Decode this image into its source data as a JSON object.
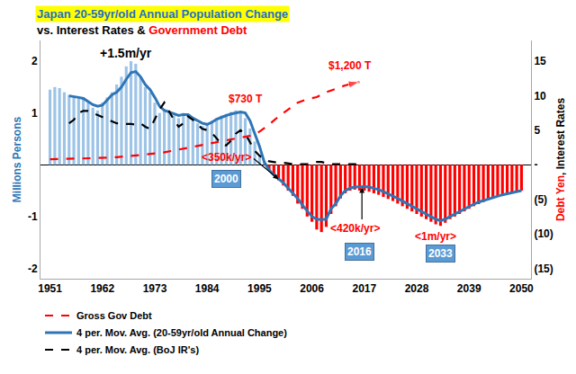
{
  "chart_data": {
    "type": "bar",
    "title": "Japan 20-59yr/old Annual Population Change",
    "subtitle": [
      {
        "text": "vs. Interest Rates & ",
        "color": "#000000"
      },
      {
        "text": "Government Debt",
        "color": "#ff0000"
      }
    ],
    "ylabel": "Millions Persons",
    "y2label": [
      {
        "text": "Debt Yen",
        "color": "#ff0000"
      },
      {
        "text": ", Interest Rates",
        "color": "#000000"
      }
    ],
    "xlim": [
      1949,
      2052
    ],
    "xticks": [
      1951,
      1962,
      1973,
      1984,
      1995,
      2006,
      2017,
      2028,
      2039,
      2050
    ],
    "ylim": [
      -2.2,
      2.4
    ],
    "yticks": [
      -2,
      -1,
      1,
      2
    ],
    "y2lim": [
      -16.5,
      18
    ],
    "y2ticks": [
      {
        "value": -15,
        "label": "(15)"
      },
      {
        "value": -10,
        "label": "(10)"
      },
      {
        "value": -5,
        "label": "(5)"
      },
      {
        "value": 0,
        "label": "-"
      },
      5,
      10,
      15
    ],
    "grid": false,
    "legend": "bottom",
    "series": [
      {
        "color": "#9dc3e6",
        "x": [
          1951,
          1952,
          1953,
          1954,
          1955,
          1956,
          1957,
          1958,
          1959,
          1960,
          1961,
          1962,
          1963,
          1964,
          1965,
          1966,
          1967,
          1968,
          1969,
          1970,
          1971,
          1972,
          1973,
          1974,
          1975,
          1976,
          1977,
          1978,
          1979,
          1980,
          1981,
          1982,
          1983,
          1984,
          1985,
          1986,
          1987,
          1988,
          1989,
          1990,
          1991,
          1992,
          1993,
          1994,
          1995,
          1996
        ],
        "values": [
          1.45,
          1.5,
          1.48,
          1.4,
          1.35,
          1.3,
          1.28,
          1.3,
          1.2,
          1.1,
          1.05,
          1.2,
          1.3,
          1.4,
          1.55,
          1.7,
          1.9,
          2.0,
          1.95,
          1.7,
          1.5,
          1.4,
          1.2,
          1.0,
          1.05,
          1.0,
          0.95,
          0.9,
          1.0,
          0.95,
          0.85,
          0.8,
          0.75,
          0.78,
          0.85,
          0.9,
          0.95,
          0.98,
          1.02,
          1.05,
          1.0,
          0.9,
          0.7,
          0.45,
          0.2,
          0.05
        ]
      },
      {
        "color": "#ff0000",
        "x": [
          1997,
          1998,
          1999,
          2000,
          2001,
          2002,
          2003,
          2004,
          2005,
          2006,
          2007,
          2008,
          2009,
          2010,
          2011,
          2012,
          2013,
          2014,
          2015,
          2016,
          2017,
          2018,
          2019,
          2020,
          2021,
          2022,
          2023,
          2024,
          2025,
          2026,
          2027,
          2028,
          2029,
          2030,
          2031,
          2032,
          2033,
          2034,
          2035,
          2036,
          2037,
          2038,
          2039,
          2040,
          2041,
          2042,
          2043,
          2044,
          2045,
          2046,
          2047,
          2048,
          2049,
          2050
        ],
        "values": [
          -0.1,
          -0.2,
          -0.3,
          -0.4,
          -0.5,
          -0.6,
          -0.75,
          -0.85,
          -1.0,
          -1.1,
          -1.25,
          -1.3,
          -1.2,
          -0.95,
          -0.8,
          -0.65,
          -0.55,
          -0.5,
          -0.48,
          -0.5,
          -0.5,
          -0.52,
          -0.55,
          -0.58,
          -0.62,
          -0.66,
          -0.7,
          -0.75,
          -0.8,
          -0.85,
          -0.9,
          -0.95,
          -1.0,
          -1.05,
          -1.1,
          -1.15,
          -1.18,
          -1.12,
          -1.05,
          -1.0,
          -0.95,
          -0.9,
          -0.85,
          -0.8,
          -0.76,
          -0.72,
          -0.68,
          -0.65,
          -0.62,
          -0.6,
          -0.57,
          -0.55,
          -0.53,
          -0.5
        ]
      },
      {
        "name": "Gross Gov Debt",
        "type": "line",
        "axis": "y2",
        "color": "#ff0000",
        "line_style": "dashed",
        "marker": "arrow",
        "x": [
          1951,
          1955,
          1960,
          1965,
          1970,
          1975,
          1980,
          1985,
          1990,
          1993,
          1995,
          1997,
          1999,
          2001,
          2003,
          2005,
          2007,
          2009,
          2011,
          2013,
          2016
        ],
        "values": [
          0.8,
          0.85,
          0.95,
          1.1,
          1.4,
          1.8,
          2.5,
          3.2,
          3.8,
          4.2,
          4.8,
          5.8,
          7.0,
          8.0,
          9.0,
          9.5,
          9.8,
          10.5,
          11.0,
          11.5,
          12.0
        ]
      },
      {
        "name": "4 per. Mov. Avg. (20-59yr/old Annual Change)",
        "type": "line",
        "color": "#2e75b6",
        "line_style": "solid",
        "x": [
          1955,
          1956,
          1957,
          1958,
          1959,
          1960,
          1961,
          1962,
          1963,
          1964,
          1965,
          1966,
          1967,
          1968,
          1969,
          1970,
          1971,
          1972,
          1973,
          1974,
          1975,
          1976,
          1977,
          1978,
          1979,
          1980,
          1981,
          1982,
          1983,
          1984,
          1985,
          1986,
          1987,
          1988,
          1989,
          1990,
          1991,
          1992,
          1993,
          1994,
          1995,
          1996,
          1997,
          1998,
          1999,
          2000,
          2001,
          2002,
          2003,
          2004,
          2005,
          2006,
          2007,
          2008,
          2009,
          2010,
          2011,
          2012,
          2013,
          2014,
          2015,
          2016,
          2017,
          2018,
          2019,
          2020,
          2021,
          2022,
          2023,
          2024,
          2025,
          2026,
          2027,
          2028,
          2029,
          2030,
          2031,
          2032,
          2033,
          2034,
          2035,
          2036,
          2037,
          2038,
          2039,
          2040,
          2041,
          2042,
          2043,
          2044,
          2045,
          2046,
          2047,
          2048,
          2049,
          2050
        ],
        "values": [
          1.33,
          1.32,
          1.3,
          1.28,
          1.22,
          1.16,
          1.13,
          1.15,
          1.25,
          1.35,
          1.4,
          1.5,
          1.65,
          1.78,
          1.8,
          1.7,
          1.55,
          1.45,
          1.3,
          1.13,
          1.05,
          1.02,
          0.98,
          0.95,
          0.97,
          0.97,
          0.9,
          0.85,
          0.8,
          0.78,
          0.82,
          0.88,
          0.92,
          0.95,
          0.98,
          1.0,
          1.02,
          1.0,
          0.85,
          0.6,
          0.35,
          0.05,
          -0.1,
          -0.2,
          -0.28,
          -0.35,
          -0.45,
          -0.55,
          -0.65,
          -0.78,
          -0.9,
          -1.0,
          -1.05,
          -1.06,
          -1.05,
          -0.85,
          -0.75,
          -0.6,
          -0.5,
          -0.45,
          -0.43,
          -0.42,
          -0.42,
          -0.43,
          -0.45,
          -0.48,
          -0.52,
          -0.56,
          -0.6,
          -0.65,
          -0.7,
          -0.75,
          -0.8,
          -0.85,
          -0.9,
          -0.95,
          -1.0,
          -1.05,
          -1.08,
          -1.05,
          -1.0,
          -0.95,
          -0.9,
          -0.85,
          -0.8,
          -0.76,
          -0.72,
          -0.69,
          -0.66,
          -0.63,
          -0.6,
          -0.58,
          -0.56,
          -0.54,
          -0.52,
          -0.5
        ]
      },
      {
        "name": "4 per. Mov. Avg. (BoJ IR's)",
        "type": "line",
        "axis": "y2",
        "color": "#000000",
        "line_style": "dashed",
        "x": [
          1955,
          1956,
          1957,
          1958,
          1959,
          1960,
          1961,
          1962,
          1963,
          1964,
          1965,
          1966,
          1967,
          1968,
          1969,
          1970,
          1971,
          1972,
          1973,
          1974,
          1975,
          1976,
          1977,
          1978,
          1979,
          1980,
          1981,
          1982,
          1983,
          1984,
          1985,
          1986,
          1987,
          1988,
          1989,
          1990,
          1991,
          1992,
          1993,
          1994,
          1995,
          1996,
          1997,
          1998,
          1999,
          2000,
          2001,
          2002,
          2003,
          2004,
          2005,
          2006,
          2007,
          2008,
          2009,
          2010,
          2011,
          2012,
          2013,
          2014,
          2015,
          2016,
          2017
        ],
        "values": [
          6.0,
          6.5,
          7.5,
          7.8,
          7.8,
          7.5,
          7.2,
          6.8,
          6.5,
          6.2,
          6.0,
          6.0,
          5.9,
          5.9,
          5.8,
          6.0,
          5.5,
          5.2,
          6.5,
          8.0,
          9.0,
          7.8,
          6.5,
          5.5,
          6.0,
          7.0,
          6.5,
          5.8,
          5.2,
          5.0,
          4.6,
          3.8,
          3.0,
          2.8,
          3.5,
          4.5,
          5.0,
          4.5,
          3.2,
          2.0,
          1.3,
          0.8,
          0.5,
          0.4,
          0.3,
          0.3,
          0.2,
          0.1,
          0.1,
          0.1,
          0.1,
          0.2,
          0.4,
          0.4,
          0.2,
          0.1,
          0.1,
          0.1,
          0.1,
          0.1,
          0.1,
          0.0,
          0.0
        ]
      }
    ],
    "annotations": [
      {
        "text": "+1.5m/yr",
        "x": 1967,
        "y": 2.15,
        "color": "#000000"
      },
      {
        "text": "$730 T",
        "x": 1992,
        "y": 9.5,
        "axis": "y2",
        "color": "#ff0000"
      },
      {
        "text": "$1,200 T",
        "x": 2014,
        "y": 14.3,
        "axis": "y2",
        "color": "#ff0000"
      },
      {
        "text": "<350k/yr>",
        "x": 1988,
        "y": 0.14,
        "color": "#ff0000"
      },
      {
        "text": "2000",
        "x": 1988,
        "y": -0.27,
        "type": "box"
      },
      {
        "text": "<420k/yr>",
        "x": 2015,
        "y": -1.22,
        "color": "#ff0000"
      },
      {
        "text": "2016",
        "x": 2016,
        "y": -1.68,
        "type": "box"
      },
      {
        "text": "<1m/yr>",
        "x": 2032,
        "y": -1.38,
        "color": "#ff0000"
      },
      {
        "text": "2033",
        "x": 2033,
        "y": -1.72,
        "type": "box"
      }
    ],
    "arrows": [
      {
        "x": 1999,
        "y": -0.28,
        "from_x": 1993.5,
        "from_y": 0.14
      },
      {
        "x": 2016.5,
        "y": -0.44,
        "from_x": 2016.5,
        "from_y": -1.08
      }
    ]
  }
}
